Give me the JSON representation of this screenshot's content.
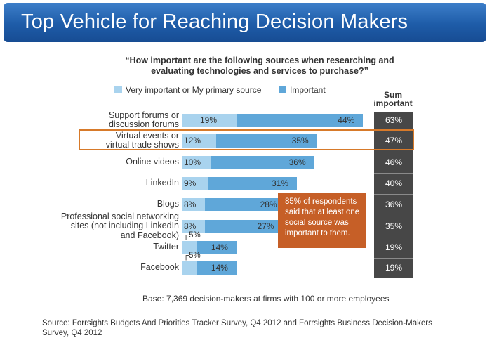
{
  "banner_title": "Top Vehicle for Reaching Decision Makers",
  "subtitle_line1": "“How important are the following sources when researching and",
  "subtitle_line2": "evaluating technologies and services to purchase?”",
  "legend": {
    "very_important": "Very important or My primary source",
    "important": "Important"
  },
  "sum_header_line1": "Sum",
  "sum_header_line2": "important",
  "colors": {
    "very_important": "#a9d3ee",
    "important": "#5fa7d9",
    "sum_column": "#474747",
    "highlight": "#d77a2a",
    "callout": "#c65f27"
  },
  "callout_lines": [
    "85% of respondents",
    "said  that at least one",
    "social  source was",
    "important  to them."
  ],
  "base_note": "Base: 7,369 decision-makers at firms with 100 or more employees",
  "source_line1": "Source: Forrsights Budgets And Priorities Tracker Survey, Q4 2012 and Forrsights Business Decision-Makers",
  "source_line2": "Survey, Q4 2012",
  "chart_data": {
    "type": "bar",
    "orientation": "horizontal-stacked",
    "categories": [
      [
        "Support forums or",
        "discussion forums"
      ],
      [
        "Virtual events or",
        "virtual trade shows"
      ],
      [
        "Online videos"
      ],
      [
        "LinkedIn"
      ],
      [
        "Blogs"
      ],
      [
        "Professional social networking",
        "sites (not including LinkedIn",
        "and Facebook)"
      ],
      [
        "Twitter"
      ],
      [
        "Facebook"
      ]
    ],
    "series": [
      {
        "name": "Very important or My primary source",
        "values": [
          19,
          12,
          10,
          9,
          8,
          8,
          5,
          5
        ]
      },
      {
        "name": "Important",
        "values": [
          44,
          35,
          36,
          31,
          28,
          27,
          14,
          14
        ]
      }
    ],
    "sum_important": [
      63,
      47,
      46,
      40,
      36,
      35,
      19,
      19
    ],
    "value_suffix": "%",
    "highlighted_category_index": 1,
    "grid": false
  }
}
